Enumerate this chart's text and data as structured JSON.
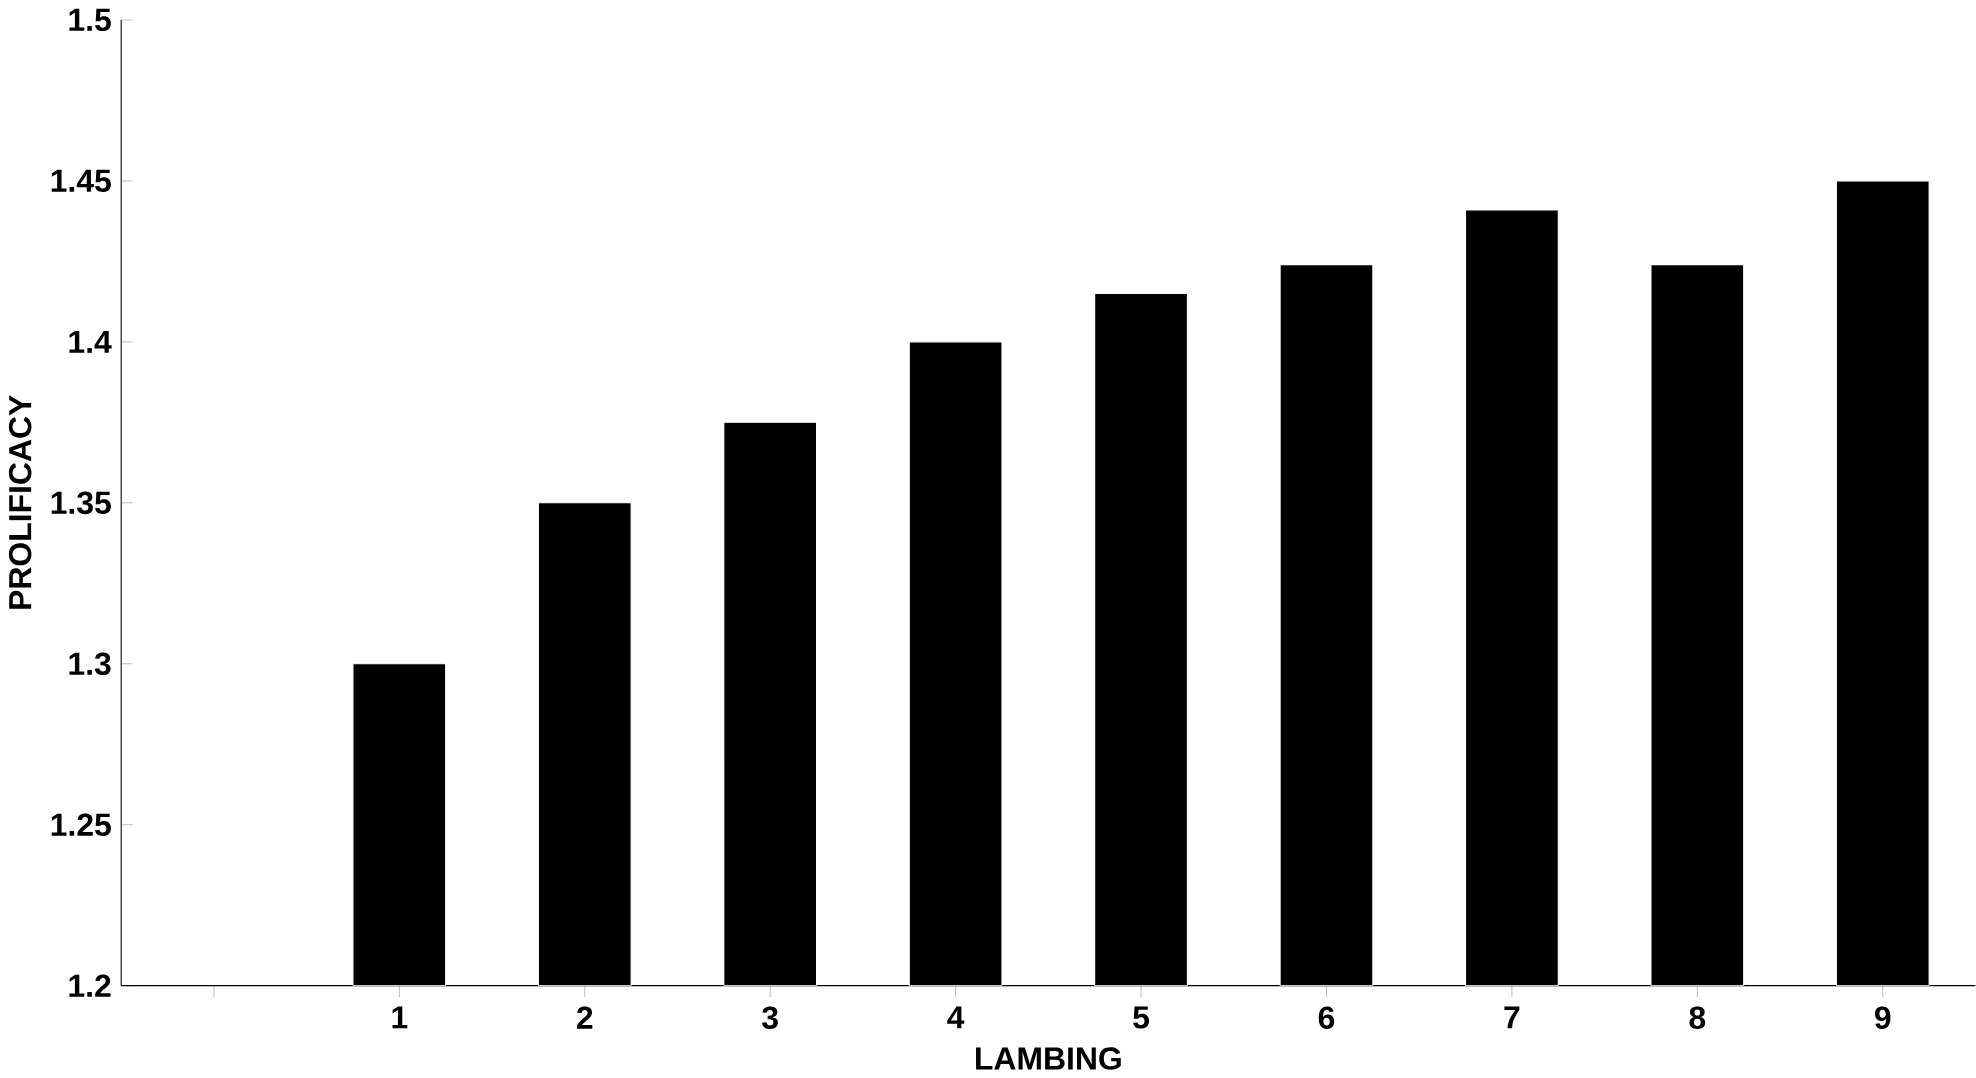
{
  "chart_data": {
    "type": "bar",
    "xlabel": "LAMBING",
    "ylabel": "PROLIFICACY",
    "categories": [
      null,
      "1",
      "2",
      "3",
      "4",
      "5",
      "6",
      "7",
      "8",
      "9"
    ],
    "values": [
      null,
      1.3,
      1.35,
      1.375,
      1.4,
      1.415,
      1.424,
      1.441,
      1.424,
      1.45
    ],
    "color": "#000000",
    "ylim": [
      1.2,
      1.5
    ],
    "yticks": [
      1.2,
      1.25,
      1.3,
      1.35,
      1.4,
      1.45,
      1.5
    ],
    "grid": false
  }
}
